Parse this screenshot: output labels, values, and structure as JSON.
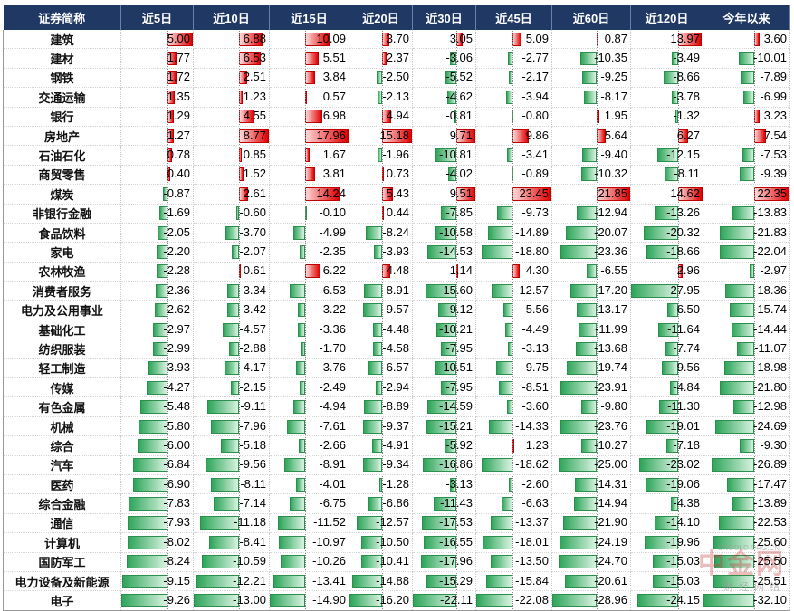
{
  "header": {
    "name_col": "证券简称",
    "columns": [
      "近5日",
      "近10日",
      "近15日",
      "近20日",
      "近30日",
      "近45日",
      "近60日",
      "近120日",
      "今年以来"
    ]
  },
  "chart_data": {
    "type": "table",
    "title": "",
    "categories": [
      "建筑",
      "建材",
      "钢铁",
      "交通运输",
      "银行",
      "房地产",
      "石油石化",
      "商贸零售",
      "煤炭",
      "非银行金融",
      "食品饮料",
      "家电",
      "农林牧渔",
      "消费者服务",
      "电力及公用事业",
      "基础化工",
      "纺织服装",
      "轻工制造",
      "传媒",
      "有色金属",
      "机械",
      "综合",
      "汽车",
      "医药",
      "综合金融",
      "通信",
      "计算机",
      "国防军工",
      "电力设备及新能源",
      "电子"
    ],
    "series": [
      {
        "name": "近5日",
        "values": [
          5.0,
          1.77,
          1.72,
          1.35,
          1.29,
          1.27,
          0.78,
          0.4,
          -0.87,
          -1.69,
          -2.05,
          -2.2,
          -2.28,
          -2.36,
          -2.62,
          -2.97,
          -2.99,
          -3.93,
          -4.27,
          -5.48,
          -5.8,
          -6.0,
          -6.84,
          -6.9,
          -7.83,
          -7.93,
          -8.02,
          -8.24,
          -9.15,
          -9.26
        ]
      },
      {
        "name": "近10日",
        "values": [
          6.88,
          6.53,
          2.51,
          1.23,
          4.55,
          8.77,
          0.85,
          1.52,
          2.61,
          -0.6,
          -3.7,
          -2.07,
          0.61,
          -3.34,
          -3.42,
          -4.57,
          -2.88,
          -4.17,
          -2.15,
          -9.11,
          -7.96,
          -5.18,
          -9.56,
          -8.11,
          -7.14,
          -11.18,
          -8.41,
          -10.59,
          -12.21,
          -13.0
        ]
      },
      {
        "name": "近15日",
        "values": [
          10.09,
          5.51,
          3.84,
          0.57,
          6.98,
          17.96,
          1.67,
          3.81,
          14.24,
          -0.1,
          -4.99,
          -2.35,
          6.22,
          -6.53,
          -3.22,
          -3.36,
          -1.7,
          -3.76,
          -2.49,
          -4.94,
          -7.61,
          -2.66,
          -8.91,
          -4.01,
          -6.75,
          -11.52,
          -10.97,
          -10.26,
          -13.41,
          -14.9
        ]
      },
      {
        "name": "近20日",
        "values": [
          3.7,
          2.37,
          -2.5,
          -2.13,
          4.94,
          15.18,
          -1.96,
          0.73,
          5.43,
          0.44,
          -8.24,
          -3.93,
          4.48,
          -8.91,
          -9.57,
          -4.48,
          -4.58,
          -6.57,
          -2.94,
          -8.89,
          -9.37,
          -4.91,
          -9.34,
          -1.28,
          -6.86,
          -12.57,
          -10.5,
          -10.41,
          -14.88,
          -16.2
        ]
      },
      {
        "name": "近30日",
        "values": [
          3.05,
          -3.06,
          -5.52,
          -4.62,
          -0.81,
          9.71,
          -10.81,
          -4.02,
          9.51,
          -7.85,
          -10.58,
          -14.53,
          1.14,
          -15.6,
          -9.12,
          -10.21,
          -7.95,
          -10.51,
          -7.95,
          -14.59,
          -15.21,
          -5.92,
          -16.86,
          -3.13,
          -11.43,
          -17.53,
          -16.55,
          -17.96,
          -15.29,
          -22.11
        ]
      },
      {
        "name": "近45日",
        "values": [
          5.09,
          -2.77,
          -2.17,
          -3.94,
          -0.8,
          9.86,
          -3.41,
          -0.89,
          23.45,
          -9.73,
          -14.89,
          -18.8,
          4.3,
          -12.57,
          -5.56,
          -4.49,
          -3.13,
          -9.75,
          -8.51,
          -3.6,
          -14.33,
          1.23,
          -18.62,
          -2.6,
          -6.63,
          -13.37,
          -18.01,
          -13.5,
          -15.84,
          -22.08
        ]
      },
      {
        "name": "近60日",
        "values": [
          0.87,
          -10.35,
          -9.25,
          -8.17,
          1.95,
          5.64,
          -9.4,
          -10.32,
          21.85,
          -12.94,
          -20.07,
          -23.36,
          -6.55,
          -17.2,
          -13.17,
          -11.99,
          -13.68,
          -19.74,
          -23.91,
          -9.8,
          -23.76,
          -10.27,
          -25.0,
          -14.31,
          -14.94,
          -21.9,
          -24.19,
          -24.7,
          -20.61,
          -28.96
        ]
      },
      {
        "name": "近120日",
        "values": [
          13.97,
          -3.49,
          -8.66,
          -3.78,
          -1.32,
          6.27,
          -12.15,
          -8.11,
          14.62,
          -13.26,
          -20.32,
          -18.66,
          2.96,
          -27.95,
          -6.5,
          -11.64,
          -7.74,
          -9.56,
          -4.84,
          -11.3,
          -19.01,
          -7.18,
          -23.02,
          -19.06,
          -4.38,
          -14.1,
          -19.96,
          -15.03,
          -15.03,
          -24.15
        ]
      },
      {
        "name": "今年以来",
        "values": [
          3.6,
          -10.01,
          -7.89,
          -6.99,
          3.23,
          7.54,
          -7.53,
          -9.39,
          22.35,
          -13.83,
          -21.83,
          -22.04,
          -2.97,
          -18.36,
          -15.74,
          -14.44,
          -11.07,
          -18.98,
          -21.8,
          -12.98,
          -24.69,
          -9.3,
          -26.89,
          -17.47,
          -13.89,
          -22.53,
          -25.6,
          -25.5,
          -25.51,
          -32.1
        ]
      }
    ],
    "colors": {
      "positive": "#e00000",
      "negative": "#2ea55a",
      "header_bg": "#1f3864"
    }
  },
  "watermark": {
    "main": "中金网",
    "sub": "财经网络",
    "url": "CNGOLD.ORG.CN"
  }
}
